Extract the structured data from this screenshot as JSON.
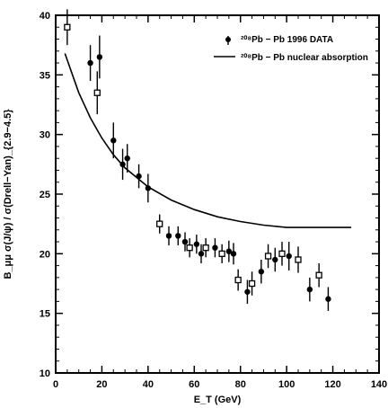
{
  "chart_data": {
    "type": "scatter",
    "title": "",
    "xlabel": "E_T (GeV)",
    "ylabel": "B_μμ σ(J/ψ) / σ(Drell−Yan)_{2.9−4.5}",
    "xlim": [
      0,
      140
    ],
    "ylim": [
      10,
      40
    ],
    "x_ticks": [
      0,
      20,
      40,
      60,
      80,
      100,
      120,
      140
    ],
    "y_ticks": [
      10,
      15,
      20,
      25,
      30,
      35,
      40
    ],
    "grid": false,
    "legend_position": "top-right",
    "series": [
      {
        "name": "²⁰⁸Pb − Pb 1996 DATA",
        "type": "scatter",
        "marker": "filled-circle",
        "points": [
          {
            "x": 15,
            "y": 36.0,
            "err": 1.5
          },
          {
            "x": 19,
            "y": 36.5,
            "err": 1.8
          },
          {
            "x": 25,
            "y": 29.5,
            "err": 1.5
          },
          {
            "x": 29,
            "y": 27.5,
            "err": 1.3
          },
          {
            "x": 31,
            "y": 28.0,
            "err": 1.2
          },
          {
            "x": 36,
            "y": 26.5,
            "err": 1.0
          },
          {
            "x": 40,
            "y": 25.5,
            "err": 1.2
          },
          {
            "x": 49,
            "y": 21.5,
            "err": 0.8
          },
          {
            "x": 53,
            "y": 21.5,
            "err": 0.8
          },
          {
            "x": 56,
            "y": 21.0,
            "err": 0.8
          },
          {
            "x": 61,
            "y": 20.8,
            "err": 0.8
          },
          {
            "x": 63,
            "y": 20.0,
            "err": 0.8
          },
          {
            "x": 69,
            "y": 20.5,
            "err": 0.8
          },
          {
            "x": 75,
            "y": 20.2,
            "err": 0.9
          },
          {
            "x": 77,
            "y": 20.0,
            "err": 0.9
          },
          {
            "x": 83,
            "y": 16.8,
            "err": 1.0
          },
          {
            "x": 89,
            "y": 18.5,
            "err": 1.0
          },
          {
            "x": 95,
            "y": 19.5,
            "err": 1.0
          },
          {
            "x": 101,
            "y": 19.8,
            "err": 1.2
          },
          {
            "x": 110,
            "y": 17.0,
            "err": 1.0
          },
          {
            "x": 118,
            "y": 16.2,
            "err": 1.0
          }
        ]
      },
      {
        "name": "",
        "type": "scatter",
        "marker": "open-square",
        "points": [
          {
            "x": 5,
            "y": 39.0,
            "err": 1.5
          },
          {
            "x": 18,
            "y": 33.5,
            "err": 1.8
          },
          {
            "x": 45,
            "y": 22.5,
            "err": 0.8
          },
          {
            "x": 58,
            "y": 20.5,
            "err": 0.8
          },
          {
            "x": 65,
            "y": 20.5,
            "err": 0.8
          },
          {
            "x": 72,
            "y": 20.0,
            "err": 0.8
          },
          {
            "x": 79,
            "y": 17.8,
            "err": 0.9
          },
          {
            "x": 85,
            "y": 17.5,
            "err": 1.0
          },
          {
            "x": 92,
            "y": 19.8,
            "err": 1.0
          },
          {
            "x": 98,
            "y": 20.0,
            "err": 1.0
          },
          {
            "x": 105,
            "y": 19.5,
            "err": 1.1
          },
          {
            "x": 114,
            "y": 18.2,
            "err": 1.0
          }
        ]
      },
      {
        "name": "²⁰⁸Pb − Pb nuclear absorption",
        "type": "line",
        "points": [
          {
            "x": 4,
            "y": 36.8
          },
          {
            "x": 10,
            "y": 33.5
          },
          {
            "x": 15,
            "y": 31.4
          },
          {
            "x": 20,
            "y": 29.7
          },
          {
            "x": 25,
            "y": 28.3
          },
          {
            "x": 30,
            "y": 27.2
          },
          {
            "x": 40,
            "y": 25.6
          },
          {
            "x": 50,
            "y": 24.5
          },
          {
            "x": 60,
            "y": 23.7
          },
          {
            "x": 70,
            "y": 23.1
          },
          {
            "x": 80,
            "y": 22.7
          },
          {
            "x": 90,
            "y": 22.4
          },
          {
            "x": 100,
            "y": 22.2
          },
          {
            "x": 110,
            "y": 22.2
          },
          {
            "x": 120,
            "y": 22.2
          },
          {
            "x": 128,
            "y": 22.2
          }
        ]
      }
    ]
  }
}
